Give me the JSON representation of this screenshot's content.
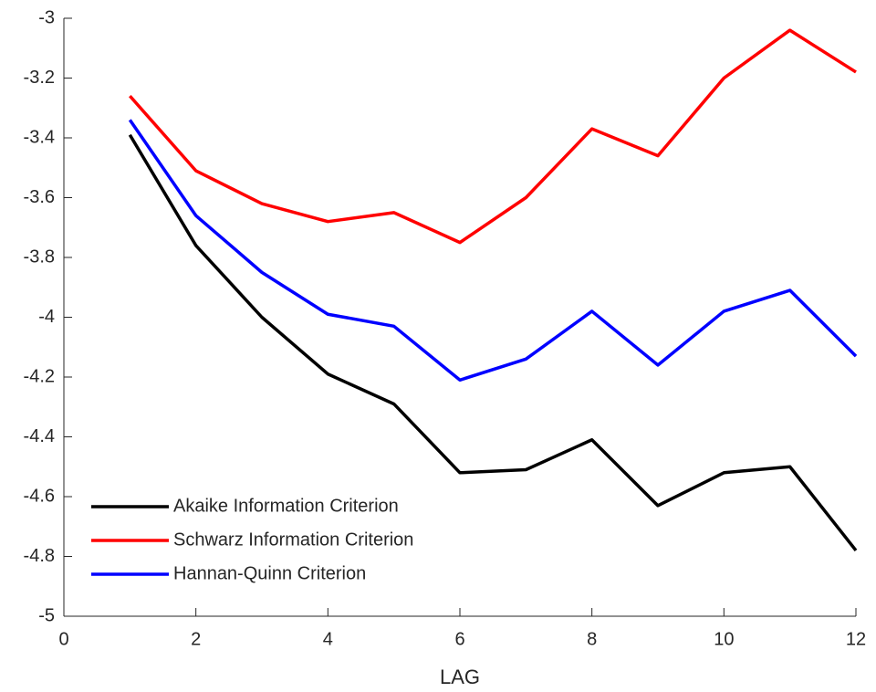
{
  "chart_data": {
    "type": "line",
    "x": [
      1,
      2,
      3,
      4,
      5,
      6,
      7,
      8,
      9,
      10,
      11,
      12
    ],
    "series": [
      {
        "name": "Akaike Information Criterion",
        "color": "#000000",
        "values": [
          -3.39,
          -3.76,
          -4.0,
          -4.19,
          -4.29,
          -4.52,
          -4.51,
          -4.41,
          -4.63,
          -4.52,
          -4.5,
          -4.78
        ]
      },
      {
        "name": "Schwarz Information Criterion",
        "color": "#ff0000",
        "values": [
          -3.26,
          -3.51,
          -3.62,
          -3.68,
          -3.65,
          -3.75,
          -3.6,
          -3.37,
          -3.46,
          -3.2,
          -3.04,
          -3.18
        ]
      },
      {
        "name": "Hannan-Quinn Criterion",
        "color": "#0000ff",
        "values": [
          -3.34,
          -3.66,
          -3.85,
          -3.99,
          -4.03,
          -4.21,
          -4.14,
          -3.98,
          -4.16,
          -3.98,
          -3.91,
          -4.13
        ]
      }
    ],
    "xlabel": "LAG",
    "xlim": [
      0,
      12
    ],
    "xticks": [
      0,
      2,
      4,
      6,
      8,
      10,
      12
    ],
    "ylim": [
      -5,
      -3
    ],
    "yticks": [
      -5,
      -4.8,
      -4.6,
      -4.4,
      -4.2,
      -4,
      -3.8,
      -3.6,
      -3.4,
      -3.2,
      -3
    ],
    "legend": "lower-left",
    "grid": false
  }
}
